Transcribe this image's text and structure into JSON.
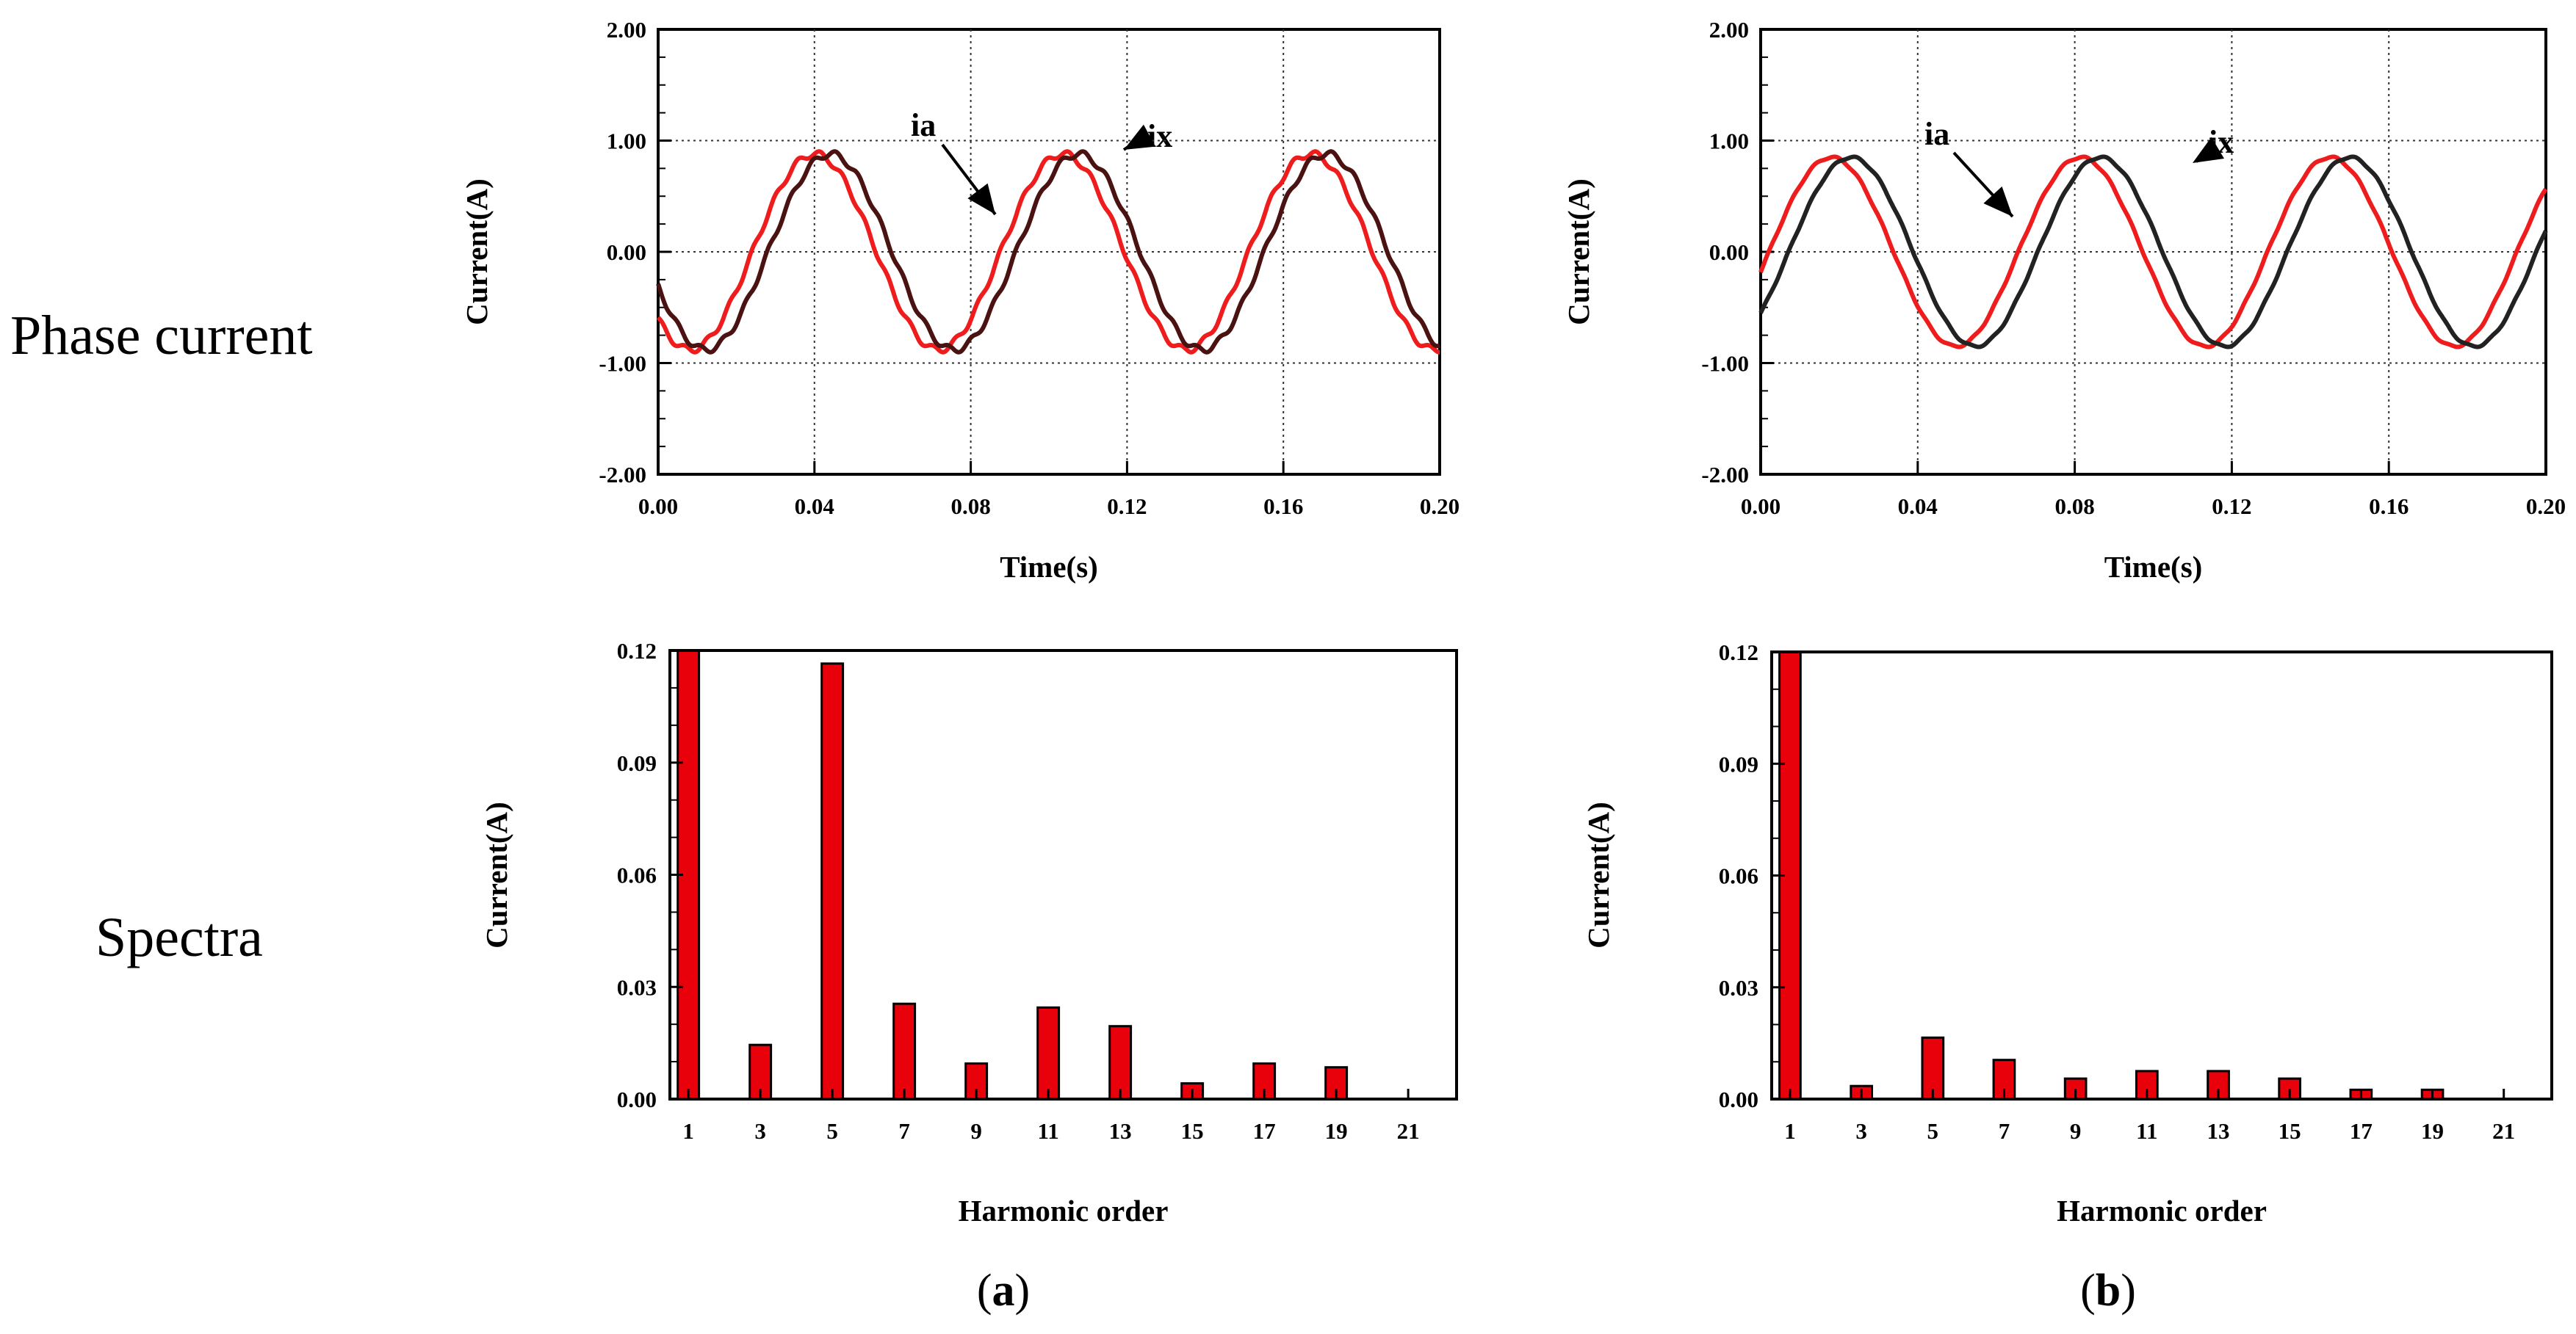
{
  "row_labels": {
    "top": "Phase current",
    "bottom": "Spectra"
  },
  "captions": [
    {
      "open": "(",
      "letter": "a",
      "close": ")"
    },
    {
      "open": "(",
      "letter": "b",
      "close": ")"
    }
  ],
  "colors": {
    "ia": "#ee1c1c",
    "ix_a": "#4a1210",
    "ix_b": "#222222",
    "bar_fill": "#e8000b",
    "bar_edge": "#000000",
    "grid": "#333333"
  },
  "chart_data": [
    {
      "id": "a-current",
      "type": "line",
      "title": "",
      "xlabel": "Time(s)",
      "ylabel": "Current(A)",
      "xlim": [
        0,
        0.2
      ],
      "ylim": [
        -2,
        2
      ],
      "xticks": [
        "0.00",
        "0.04",
        "0.08",
        "0.12",
        "0.16",
        "0.20"
      ],
      "yticks": [
        "2.00",
        "1.00",
        "0.00",
        "-1.00",
        "-2.00"
      ],
      "grid": true,
      "annotations": [
        "ia",
        "ix"
      ],
      "series": [
        {
          "name": "ia",
          "color": "#ee1c1c",
          "amplitude": 0.88,
          "period": 0.0635,
          "peak_time": 0.04,
          "ripple": 0.03
        },
        {
          "name": "ix",
          "color": "#4a1210",
          "amplitude": 0.88,
          "period": 0.0635,
          "peak_time": 0.044,
          "ripple": 0.03
        }
      ]
    },
    {
      "id": "b-current",
      "type": "line",
      "title": "",
      "xlabel": "Time(s)",
      "ylabel": "Current(A)",
      "xlim": [
        0,
        0.2
      ],
      "ylim": [
        -2,
        2
      ],
      "xticks": [
        "0.00",
        "0.04",
        "0.08",
        "0.12",
        "0.16",
        "0.20"
      ],
      "yticks": [
        "2.00",
        "1.00",
        "0.00",
        "-1.00",
        "-2.00"
      ],
      "grid": true,
      "annotations": [
        "ia",
        "ix"
      ],
      "series": [
        {
          "name": "ia",
          "color": "#ee1c1c",
          "amplitude": 0.85,
          "period": 0.0635,
          "peak_time": 0.018,
          "ripple": 0.01
        },
        {
          "name": "ix",
          "color": "#222222",
          "amplitude": 0.85,
          "period": 0.0635,
          "peak_time": 0.023,
          "ripple": 0.01
        }
      ]
    },
    {
      "id": "a-spectrum",
      "type": "bar",
      "title": "",
      "xlabel": "Harmonic order",
      "ylabel": "Current(A)",
      "ylim": [
        0,
        0.12
      ],
      "yticks": [
        "0.12",
        "0.09",
        "0.06",
        "0.03",
        "0.00"
      ],
      "categories": [
        "1",
        "3",
        "5",
        "7",
        "9",
        "11",
        "13",
        "15",
        "17",
        "19",
        "21"
      ],
      "values": [
        0.12,
        0.0145,
        0.1165,
        0.0255,
        0.0095,
        0.0245,
        0.0195,
        0.0042,
        0.0095,
        0.0085,
        0
      ]
    },
    {
      "id": "b-spectrum",
      "type": "bar",
      "title": "",
      "xlabel": "Harmonic order",
      "ylabel": "Current(A)",
      "ylim": [
        0,
        0.12
      ],
      "yticks": [
        "0.12",
        "0.09",
        "0.06",
        "0.03",
        "0.00"
      ],
      "categories": [
        "1",
        "3",
        "5",
        "7",
        "9",
        "11",
        "13",
        "15",
        "17",
        "19",
        "21"
      ],
      "values": [
        0.12,
        0.0035,
        0.0165,
        0.0105,
        0.0055,
        0.0075,
        0.0075,
        0.0055,
        0.0025,
        0.0025,
        0
      ]
    }
  ]
}
